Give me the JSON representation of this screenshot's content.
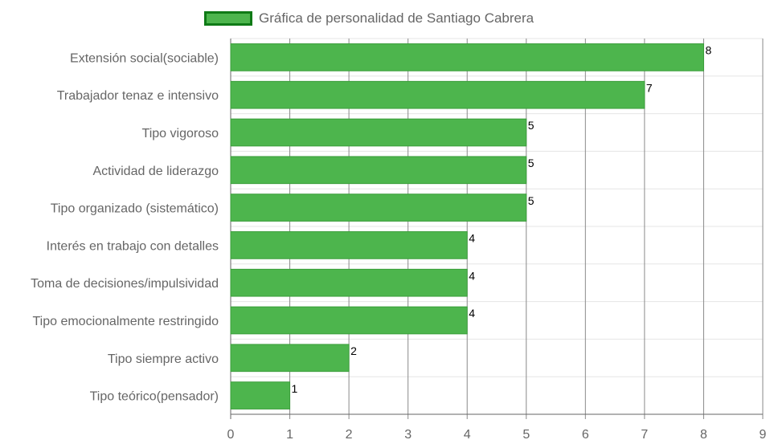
{
  "legend": {
    "label": "Gráfica de personalidad de Santiago Cabrera"
  },
  "colors": {
    "bar_fill": "#4db54d",
    "bar_border": "#3b9e3b",
    "legend_border": "#0f7a16",
    "grid": "#e5e5e5",
    "grid_dark": "#8a8a8a",
    "label_text": "#666666",
    "value_text": "#000000"
  },
  "chart_data": {
    "type": "bar",
    "orientation": "horizontal",
    "categories": [
      "Extensión social(sociable)",
      "Trabajador tenaz e intensivo",
      "Tipo vigoroso",
      "Actividad de liderazgo",
      "Tipo organizado (sistemático)",
      "Interés en trabajo con detalles",
      "Toma de decisiones/impulsividad",
      "Tipo emocionalmente restringido",
      "Tipo siempre activo",
      "Tipo teórico(pensador)"
    ],
    "series": [
      {
        "name": "Gráfica de personalidad de Santiago Cabrera",
        "values": [
          8,
          7,
          5,
          5,
          5,
          4,
          4,
          4,
          2,
          1
        ]
      }
    ],
    "xlim": [
      0,
      9
    ],
    "xticks": [
      "0",
      "1",
      "2",
      "3",
      "4",
      "5",
      "6",
      "7",
      "8",
      "9"
    ],
    "value_labels": [
      "8",
      "7",
      "5",
      "5",
      "5",
      "4",
      "4",
      "4",
      "2",
      "1"
    ],
    "grid": true,
    "legend_position": "top"
  }
}
